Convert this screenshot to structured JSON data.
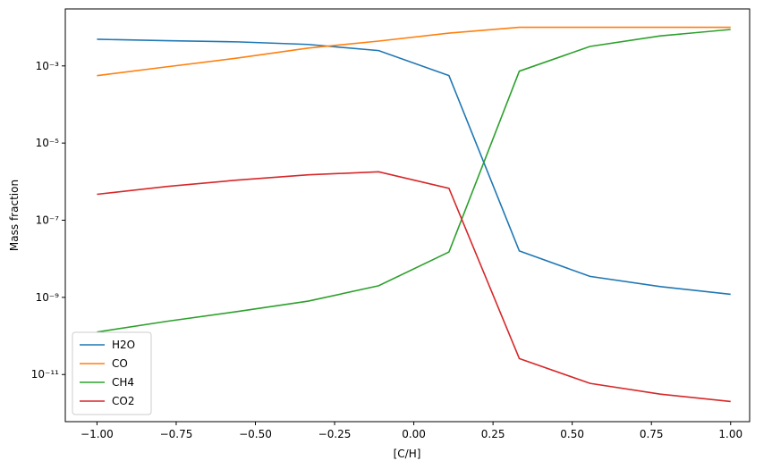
{
  "chart_data": {
    "type": "line",
    "x_label": "[C/H]",
    "y_label": "Mass fraction",
    "x": [
      -1.0,
      -0.778,
      -0.556,
      -0.333,
      -0.111,
      0.111,
      0.333,
      0.556,
      0.778,
      1.0
    ],
    "series": [
      {
        "name": "H2O",
        "color": "#1f77b4",
        "values": [
          0.0049,
          0.0045,
          0.0042,
          0.0036,
          0.0025,
          0.00056,
          1.6e-08,
          3.5e-09,
          1.9e-09,
          1.2e-09
        ]
      },
      {
        "name": "CO",
        "color": "#ff7f0e",
        "values": [
          0.00056,
          0.00095,
          0.0016,
          0.0029,
          0.0044,
          0.0071,
          0.01,
          0.01,
          0.01,
          0.01
        ]
      },
      {
        "name": "CH4",
        "color": "#2ca02c",
        "values": [
          1.26e-10,
          2.4e-10,
          4.3e-10,
          8e-10,
          2e-09,
          1.5e-08,
          0.00073,
          0.0032,
          0.006,
          0.0088
        ]
      },
      {
        "name": "CO2",
        "color": "#d62728",
        "values": [
          4.7e-07,
          7.5e-07,
          1.1e-06,
          1.5e-06,
          1.8e-06,
          6.7e-07,
          2.6e-11,
          5.9e-12,
          3.1e-12,
          2e-12
        ]
      }
    ],
    "xlim": [
      -1.1,
      1.06
    ],
    "xticks": [
      {
        "value": -1.0,
        "label": "−1.00"
      },
      {
        "value": -0.75,
        "label": "−0.75"
      },
      {
        "value": -0.5,
        "label": "−0.50"
      },
      {
        "value": -0.25,
        "label": "−0.25"
      },
      {
        "value": 0,
        "label": "0.00"
      },
      {
        "value": 0.25,
        "label": "0.25"
      },
      {
        "value": 0.5,
        "label": "0.50"
      },
      {
        "value": 0.75,
        "label": "0.75"
      },
      {
        "value": 1.0,
        "label": "1.00"
      }
    ],
    "ylim": [
      6e-13,
      0.03
    ],
    "y_scale": "log",
    "yticks": [
      {
        "value": 1e-11,
        "label": "10⁻¹¹"
      },
      {
        "value": 1e-09,
        "label": "10⁻⁹"
      },
      {
        "value": 1e-07,
        "label": "10⁻⁷"
      },
      {
        "value": 1e-05,
        "label": "10⁻⁵"
      },
      {
        "value": 0.001,
        "label": "10⁻³"
      }
    ],
    "legend": "lower left"
  }
}
